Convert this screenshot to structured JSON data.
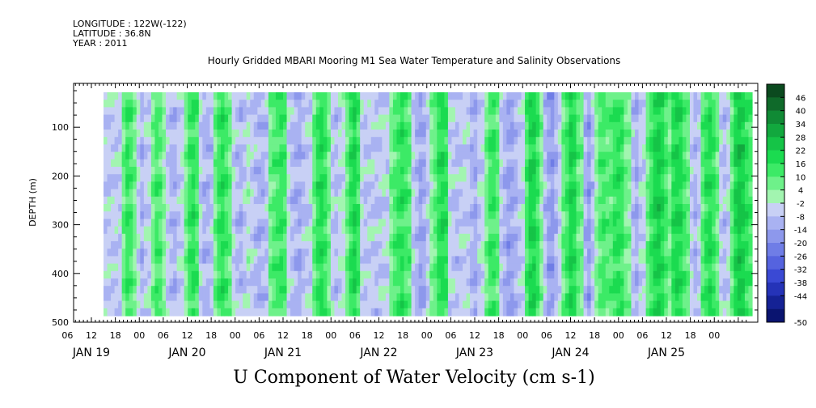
{
  "header": {
    "longitude": "LONGITUDE : 122W(-122)",
    "latitude": "LATITUDE : 36.8N",
    "year": "YEAR : 2011"
  },
  "chart_data": {
    "type": "heatmap",
    "title": "Hourly Gridded MBARI Mooring M1 Sea Water Temperature and Salinity Observations",
    "xlabel": "U Component of Water Velocity (cm s-1)",
    "ylabel": "DEPTH (m)",
    "ylim": [
      500,
      10
    ],
    "y_ticks": [
      100,
      200,
      300,
      400,
      500
    ],
    "x_hour_ticks": [
      "06",
      "12",
      "18",
      "00",
      "06",
      "12",
      "18",
      "00",
      "06",
      "12",
      "18",
      "00",
      "06",
      "12",
      "18",
      "00",
      "06",
      "12",
      "18",
      "00",
      "06",
      "12",
      "18",
      "00",
      "06",
      "12",
      "18",
      "00"
    ],
    "x_day_labels": [
      "JAN 19",
      "JAN 20",
      "JAN 21",
      "JAN 22",
      "JAN 23",
      "JAN 24",
      "JAN 25"
    ],
    "colorbar_levels": [
      46,
      40,
      34,
      28,
      22,
      16,
      10,
      4,
      -2,
      -8,
      -14,
      -20,
      -26,
      -32,
      -38,
      -44,
      -50
    ],
    "colorbar_colors": [
      "#0b4a1f",
      "#0f6a2a",
      "#108a35",
      "#12a83e",
      "#15c447",
      "#1bdb50",
      "#3cea66",
      "#6ef18a",
      "#a2f5b0",
      "#c8d0f5",
      "#a9b2f2",
      "#8d98ec",
      "#6f7de6",
      "#5563df",
      "#3a49d4",
      "#2533b8",
      "#152295",
      "#0a1470"
    ],
    "columns_u_by_hour": [
      -6,
      -6,
      -6,
      -6,
      -6,
      8,
      14,
      12,
      6,
      -4,
      -10,
      -6,
      -4,
      6,
      12,
      10,
      4,
      -6,
      -10,
      -10,
      -6,
      -4,
      6,
      14,
      16,
      12,
      -6,
      -10,
      -10,
      -8,
      6,
      14,
      16,
      12,
      8,
      -4,
      -8,
      -10,
      -6,
      -2,
      -6,
      -8,
      -10,
      -10,
      -8,
      6,
      10,
      12,
      14,
      12,
      -4,
      -8,
      -10,
      -12,
      -8,
      -6,
      -4,
      8,
      16,
      18,
      14,
      6,
      -6,
      -8,
      -4,
      -2,
      8,
      16,
      20,
      14,
      -4,
      -8,
      -6,
      -6,
      -8,
      -6,
      -4,
      -6,
      6,
      10,
      14,
      16,
      12,
      10,
      -6,
      -10,
      -14,
      -12,
      -6,
      4,
      8,
      16,
      18,
      16,
      -4,
      -6,
      -8,
      -6,
      -4,
      -6,
      -10,
      -12,
      -6,
      -4,
      6,
      12,
      14,
      10,
      -6,
      -10,
      -14,
      -14,
      -10,
      -6,
      -4,
      12,
      20,
      20,
      14,
      4,
      -8,
      -14,
      -16,
      -10,
      -4,
      8,
      14,
      20,
      18,
      10,
      6,
      -10,
      -14,
      -8,
      4,
      10,
      12,
      10,
      10,
      14,
      16,
      14,
      6,
      4,
      -8,
      -12,
      -6,
      -4,
      8,
      14,
      20,
      22,
      18,
      12,
      6,
      16,
      20,
      18,
      12,
      8,
      -6,
      -10,
      -6,
      10,
      16,
      18,
      14,
      8,
      -6,
      -8,
      -4,
      10,
      20,
      24,
      22,
      16,
      12
    ]
  },
  "colors": {
    "positive": "#22e04f",
    "light_positive": "#a2f5b0",
    "negative": "#9aa6ef",
    "strong_negative": "#5563df"
  }
}
